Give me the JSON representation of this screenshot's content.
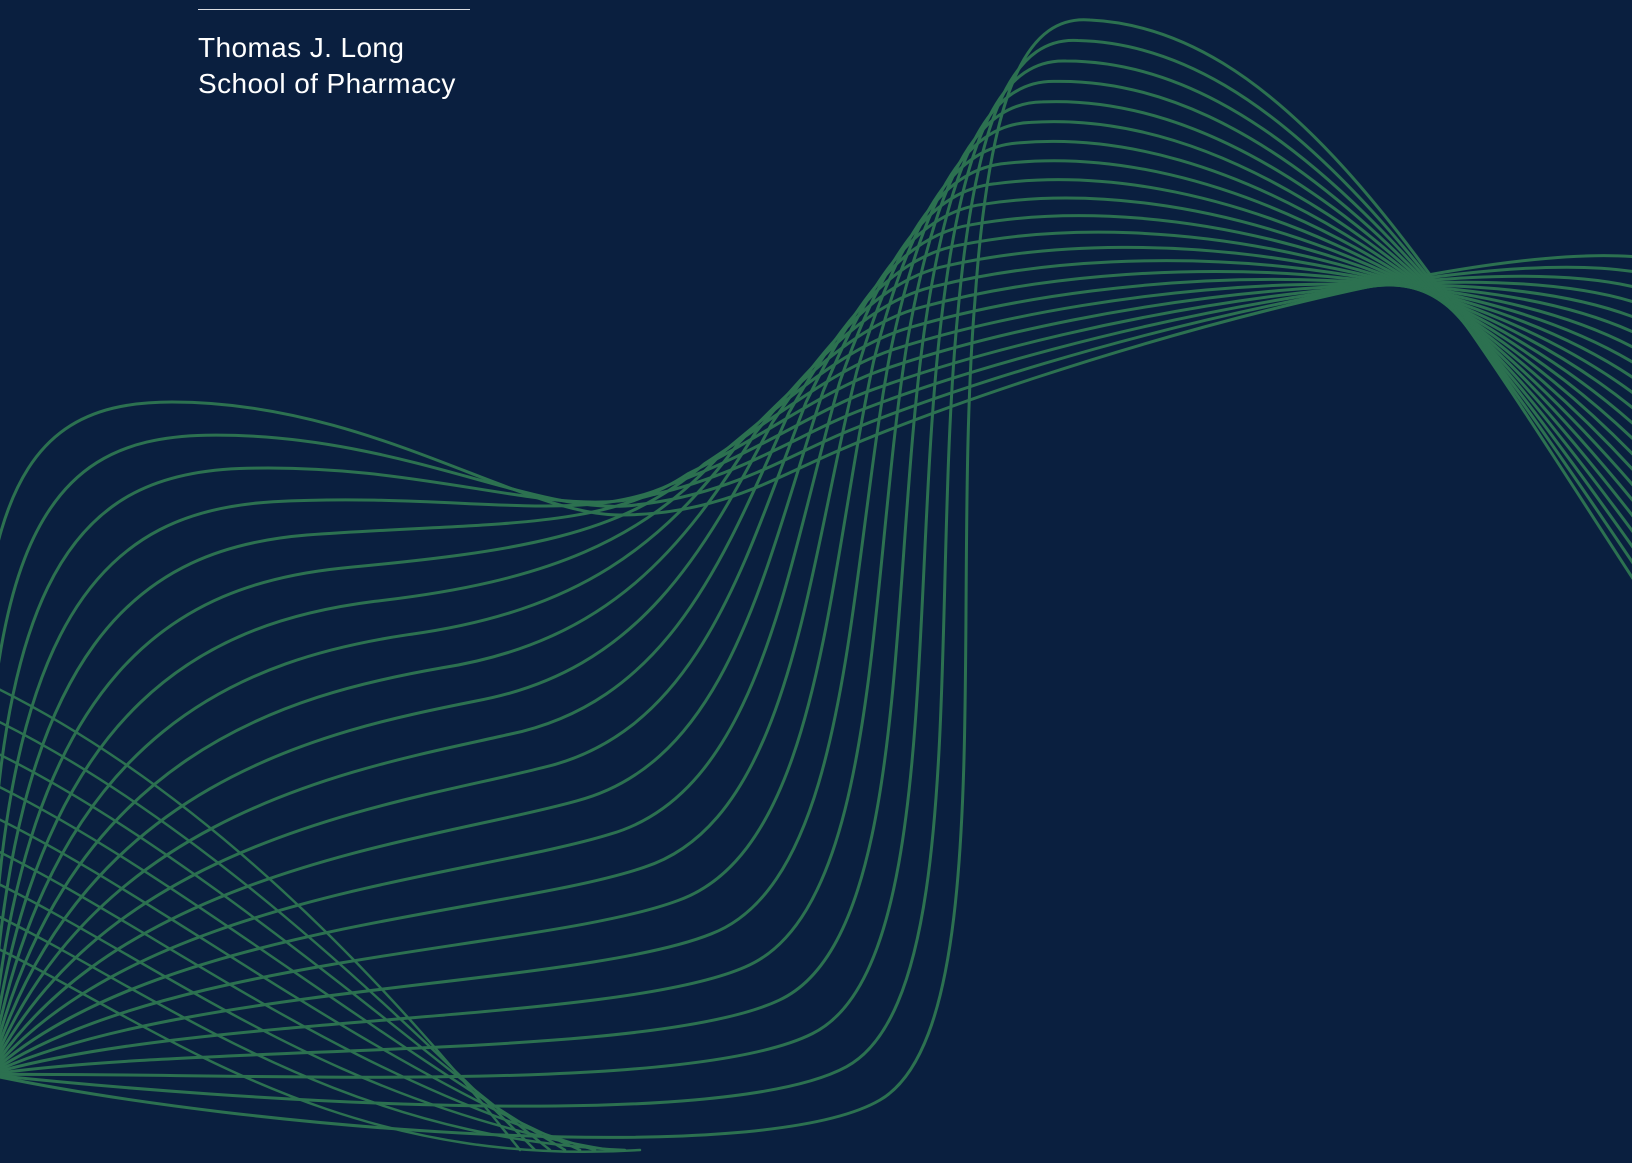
{
  "background": "#0a1f3f",
  "accent": "#2c7150",
  "header": {
    "line1": "Thomas J. Long",
    "line2": "School of Pharmacy"
  }
}
